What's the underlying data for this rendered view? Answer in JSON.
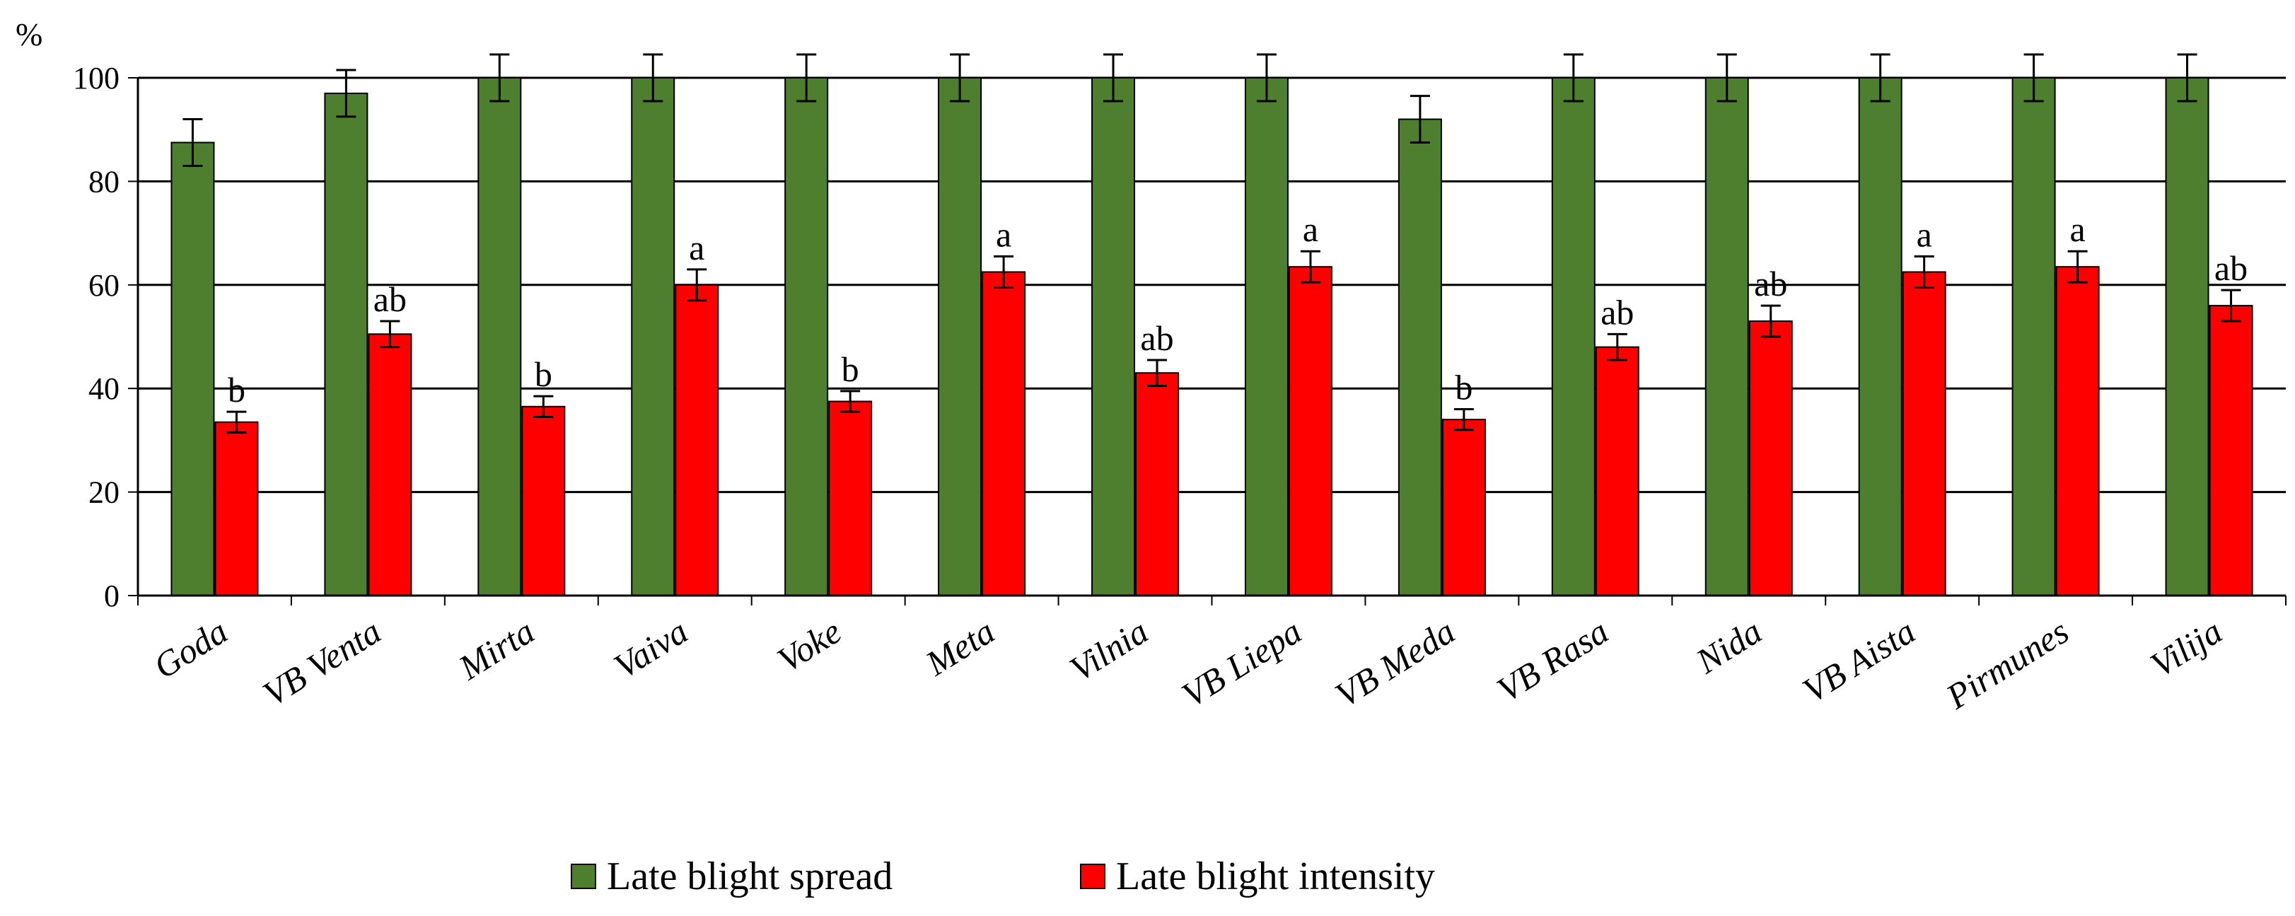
{
  "chart_data": {
    "type": "bar",
    "ylabel": "%",
    "ylim": [
      0,
      100
    ],
    "yticks": [
      0,
      20,
      40,
      60,
      80,
      100
    ],
    "grid": true,
    "legend_position": "bottom",
    "categories": [
      "Goda",
      "VB Venta",
      "Mirta",
      "Vaiva",
      "Voke",
      "Meta",
      "Vilnia",
      "VB Liepa",
      "VB Meda",
      "VB Rasa",
      "Nida",
      "VB Aista",
      "Pirmunes",
      "Vilija"
    ],
    "series": [
      {
        "name": "Late blight spread",
        "color": "#4e7f2e",
        "values": [
          87.5,
          97,
          100,
          100,
          100,
          100,
          100,
          100,
          92,
          100,
          100,
          100,
          100,
          100
        ],
        "errors": [
          4.5,
          4.5,
          4.5,
          4.5,
          4.5,
          4.5,
          4.5,
          4.5,
          4.5,
          4.5,
          4.5,
          4.5,
          4.5,
          4.5
        ]
      },
      {
        "name": "Late blight intensity",
        "color": "#ff0000",
        "values": [
          33.5,
          50.5,
          36.5,
          60,
          37.5,
          62.5,
          43,
          63.5,
          34,
          48,
          53,
          62.5,
          63.5,
          56
        ],
        "errors": [
          2,
          2.5,
          2,
          3,
          2,
          3,
          2.5,
          3,
          2,
          2.5,
          3,
          3,
          3,
          3
        ],
        "labels": [
          "b",
          "ab",
          "b",
          "a",
          "b",
          "a",
          "ab",
          "a",
          "b",
          "ab",
          "ab",
          "a",
          "a",
          "ab"
        ]
      }
    ]
  }
}
